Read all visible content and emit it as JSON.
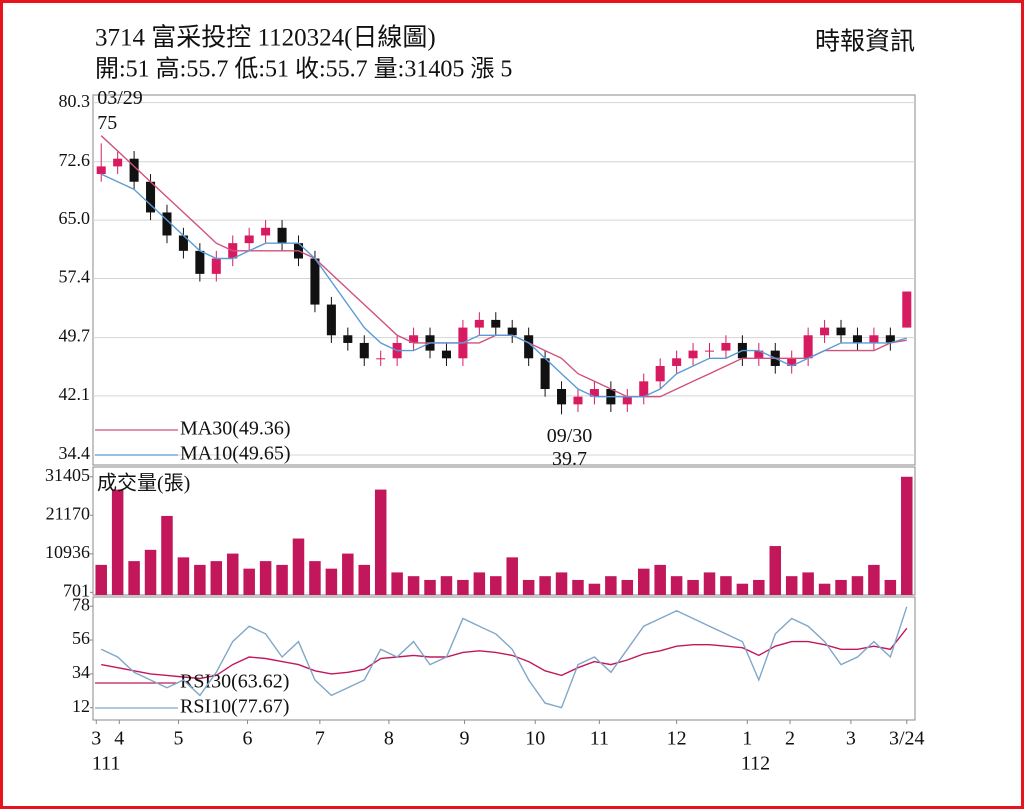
{
  "header": {
    "title": "3714  富采投控 1120324(日線圖)",
    "subtitle": "開:51 高:55.7 低:51 收:55.7 量:31405 漲 5",
    "source": "時報資訊"
  },
  "chart_data": [
    {
      "type": "candlestick",
      "up_color": "#d81b60",
      "down_color": "#111111",
      "grid": true,
      "xlim": [
        -0.5,
        49.5
      ],
      "ylim": [
        33.1,
        81.3
      ],
      "yticks": [
        80.3,
        72.6,
        {
          "value": 65,
          "label": "65.0"
        },
        57.4,
        49.7,
        42.1,
        34.4
      ],
      "open": [
        71,
        72,
        73,
        70,
        66,
        63,
        61,
        58,
        60,
        62,
        63,
        64,
        62,
        60,
        54,
        50,
        49,
        47,
        47,
        49,
        50,
        48,
        47,
        51,
        52,
        51,
        50,
        47,
        43,
        41,
        42,
        43,
        41,
        42,
        44,
        46,
        47,
        48,
        48,
        49,
        47,
        48,
        46,
        47,
        50,
        51,
        50,
        49,
        50,
        51
      ],
      "high": [
        75,
        74,
        74,
        71,
        67,
        64,
        62,
        61,
        63,
        64,
        65,
        65,
        63,
        61,
        55,
        51,
        50,
        48,
        50,
        51,
        51,
        49,
        52,
        53,
        53,
        52,
        51,
        48,
        44,
        43,
        44,
        44,
        43,
        45,
        47,
        48,
        49,
        49,
        50,
        50,
        49,
        49,
        48,
        51,
        52,
        52,
        51,
        51,
        51,
        55.7
      ],
      "low": [
        70,
        71,
        69,
        65,
        62,
        60,
        57,
        57,
        59,
        61,
        62,
        61,
        59,
        53,
        49,
        48,
        46,
        46,
        46,
        48,
        47,
        46,
        46,
        50,
        50,
        49,
        46,
        42,
        39.7,
        40,
        41,
        40,
        40,
        41,
        43,
        45,
        46,
        47,
        47,
        46,
        46,
        45,
        45,
        46,
        49,
        49,
        48,
        48,
        48,
        51
      ],
      "close": [
        72,
        73,
        70,
        66,
        63,
        61,
        58,
        60,
        62,
        63,
        64,
        62,
        60,
        54,
        50,
        49,
        47,
        47,
        49,
        50,
        48,
        47,
        51,
        52,
        51,
        50,
        47,
        43,
        41,
        42,
        43,
        41,
        42,
        44,
        46,
        47,
        48,
        48,
        49,
        47,
        48,
        46,
        47,
        50,
        51,
        50,
        49,
        50,
        49,
        55.7
      ],
      "series": [
        {
          "name": "MA30(49.36)",
          "color": "#d0507e",
          "values": [
            76,
            74,
            72,
            70,
            68,
            66,
            64,
            62,
            61,
            61,
            61,
            61,
            61,
            60,
            58,
            56,
            54,
            52,
            50,
            49,
            49,
            49,
            49,
            49,
            50,
            50,
            49,
            48,
            47,
            45,
            44,
            43,
            42,
            42,
            42,
            43,
            44,
            45,
            46,
            47,
            47,
            47,
            47,
            47,
            48,
            48,
            48,
            48,
            49,
            49.36
          ]
        },
        {
          "name": "MA10(49.65)",
          "color": "#5b9bd5",
          "values": [
            71,
            70,
            69,
            67,
            65,
            63,
            61,
            60,
            60,
            61,
            62,
            62,
            62,
            60,
            57,
            54,
            51,
            49,
            48,
            48,
            49,
            49,
            49,
            50,
            50,
            50,
            49,
            47,
            45,
            43,
            42,
            42,
            42,
            42,
            43,
            45,
            46,
            47,
            47,
            48,
            48,
            47,
            46,
            47,
            48,
            49,
            49,
            49,
            49,
            49.65
          ]
        }
      ],
      "annotations": [
        {
          "text": "03/29",
          "value": 75,
          "x": 0,
          "position": "above"
        },
        {
          "text": "09/30",
          "value": 39.7,
          "x": 28,
          "position": "below"
        }
      ]
    },
    {
      "type": "bar",
      "title": "成交量(張)",
      "color": "#c2185b",
      "grid": false,
      "xlim": [
        -0.5,
        49.5
      ],
      "ylim": [
        0,
        34000
      ],
      "yticks": [
        31405,
        21170,
        10936,
        701
      ],
      "values": [
        8000,
        28000,
        9000,
        12000,
        21000,
        10000,
        8000,
        9000,
        11000,
        7000,
        9000,
        8000,
        15000,
        9000,
        7000,
        11000,
        8000,
        28000,
        6000,
        5000,
        4000,
        5000,
        4000,
        6000,
        5000,
        10000,
        4000,
        5000,
        6000,
        4000,
        3000,
        5000,
        4000,
        7000,
        8000,
        5000,
        4000,
        6000,
        5000,
        3000,
        4000,
        13000,
        5000,
        6000,
        3000,
        4000,
        5000,
        8000,
        4000,
        31405
      ]
    },
    {
      "type": "line",
      "grid": false,
      "xlim": [
        -0.5,
        49.5
      ],
      "ylim": [
        4,
        84
      ],
      "yticks": [
        78,
        56,
        34,
        12
      ],
      "xticks": [
        {
          "value": -0.3,
          "label": "3"
        },
        {
          "value": 1.1,
          "label": "4"
        },
        {
          "value": 4.7,
          "label": "5"
        },
        {
          "value": 8.9,
          "label": "6"
        },
        {
          "value": 13.3,
          "label": "7"
        },
        {
          "value": 17.5,
          "label": "8"
        },
        {
          "value": 22.1,
          "label": "9"
        },
        {
          "value": 26.4,
          "label": "10"
        },
        {
          "value": 30.3,
          "label": "11"
        },
        {
          "value": 35,
          "label": "12"
        },
        {
          "value": 39.3,
          "label": "1"
        },
        {
          "value": 41.9,
          "label": "2"
        },
        {
          "value": 45.6,
          "label": "3"
        },
        {
          "value": 49,
          "label": "3/24"
        }
      ],
      "year_ticks": [
        {
          "value": 0.3,
          "label": "111"
        },
        {
          "value": 39.8,
          "label": "112"
        }
      ],
      "series": [
        {
          "name": "RSI30(63.62)",
          "color": "#c2185b",
          "values": [
            40,
            38,
            36,
            34,
            33,
            32,
            31,
            33,
            40,
            45,
            44,
            42,
            40,
            36,
            34,
            35,
            37,
            44,
            45,
            46,
            45,
            45,
            48,
            49,
            48,
            46,
            42,
            36,
            33,
            38,
            42,
            40,
            43,
            47,
            49,
            52,
            53,
            53,
            52,
            51,
            46,
            52,
            55,
            55,
            53,
            50,
            50,
            52,
            50,
            63.62
          ]
        },
        {
          "name": "RSI10(77.67)",
          "color": "#7fa7c9",
          "values": [
            50,
            45,
            35,
            30,
            25,
            30,
            20,
            35,
            55,
            65,
            60,
            45,
            55,
            30,
            20,
            25,
            30,
            50,
            45,
            55,
            40,
            45,
            70,
            65,
            60,
            50,
            30,
            15,
            12,
            40,
            45,
            35,
            50,
            65,
            70,
            75,
            70,
            65,
            60,
            55,
            30,
            60,
            70,
            65,
            55,
            40,
            45,
            55,
            45,
            77.67
          ]
        }
      ]
    }
  ]
}
